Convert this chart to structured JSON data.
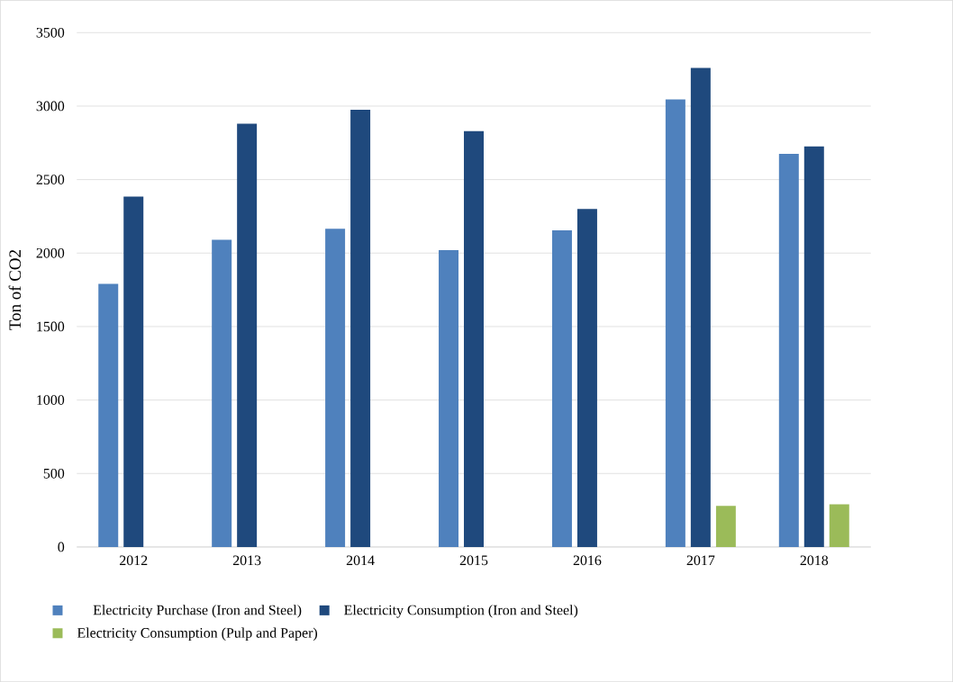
{
  "chart_data": {
    "type": "bar",
    "ylabel": "Ton of CO2",
    "categories": [
      "2012",
      "2013",
      "2014",
      "2015",
      "2016",
      "2017",
      "2018"
    ],
    "series": [
      {
        "name": "Electricity Purchase (Iron and Steel)",
        "color": "#4f81bd",
        "values": [
          1790,
          2090,
          2165,
          2020,
          2155,
          3045,
          2675
        ]
      },
      {
        "name": "Electricity Consumption (Iron and Steel)",
        "color": "#1f497d",
        "values": [
          2385,
          2880,
          2975,
          2830,
          2300,
          3260,
          2725
        ]
      },
      {
        "name": "Electricity Consumption (Pulp and Paper)",
        "color": "#9bbb59",
        "values": [
          null,
          null,
          null,
          null,
          null,
          280,
          290
        ]
      }
    ],
    "ylim": [
      0,
      3500
    ],
    "yticks": [
      0,
      500,
      1000,
      1500,
      2000,
      2500,
      3000,
      3500
    ],
    "grid": "y",
    "legend": "bottom"
  }
}
